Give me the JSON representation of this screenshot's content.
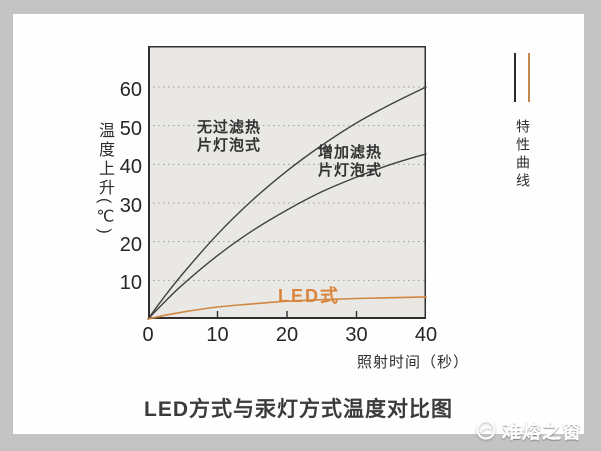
{
  "colors": {
    "frame_bg": "#c3c3c3",
    "card_bg": "#fefefe",
    "plot_bg": "#e9e8e4",
    "grid": "#9a9a9a",
    "axis": "#2f2f2f",
    "curve_black": "#414141",
    "accent_orange": "#cf8742",
    "led_label_orange": "#d9853e",
    "text": "#2e2e2e",
    "watermark": "#fdfdfd"
  },
  "chart_data": {
    "type": "line",
    "title": "LED方式与汞灯方式温度对比图",
    "xlabel": "照射时间（秒）",
    "ylabel": "温度上升(℃)",
    "legend_label": "特性曲线",
    "xlim": [
      0,
      40
    ],
    "ylim": [
      0,
      71
    ],
    "xticks": [
      0,
      10,
      20,
      30,
      40
    ],
    "yticks": [
      10,
      20,
      30,
      40,
      50,
      60
    ],
    "grid": "horizontal dotted",
    "legend_position": "right",
    "x": [
      0,
      2,
      5,
      10,
      15,
      20,
      25,
      30,
      35,
      40
    ],
    "series": [
      {
        "name": "无过滤热片灯泡式",
        "color": "#414141",
        "width": 1.4,
        "values": [
          0,
          4.9,
          11.7,
          21.9,
          30.7,
          38.3,
          44.9,
          50.7,
          55.6,
          60
        ]
      },
      {
        "name": "增加滤热片灯泡式",
        "color": "#414141",
        "width": 1.4,
        "values": [
          0,
          3.7,
          8.9,
          16.4,
          22.8,
          28.2,
          32.9,
          36.7,
          40,
          42.7
        ]
      },
      {
        "name": "LED式",
        "color": "#cf8742",
        "width": 1.6,
        "values": [
          0,
          0.8,
          1.8,
          3.1,
          3.9,
          4.6,
          5,
          5.3,
          5.5,
          5.7
        ]
      }
    ]
  },
  "labels": {
    "curve1_line1": "无过滤热",
    "curve1_line2": "片灯泡式",
    "curve2_line1": "增加滤热",
    "curve2_line2": "片灯泡式",
    "led": "LED式",
    "legend_text": "特性曲线",
    "watermark": "难熔之窗"
  }
}
